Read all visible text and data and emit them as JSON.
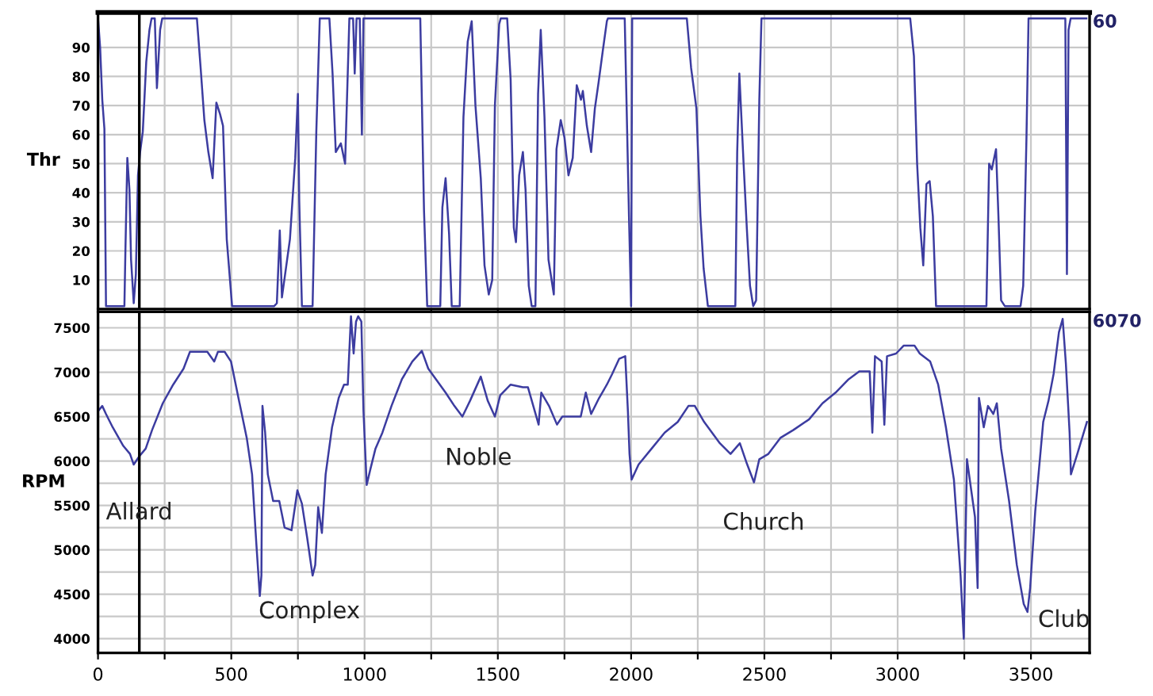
{
  "chart_data": [
    {
      "type": "line",
      "ylabel": "Thr",
      "tick_labels": "y",
      "grid": true,
      "marker": "none",
      "line_style": "solid",
      "xlim": [
        0,
        3720
      ],
      "xticks": [
        0,
        {
          "value": 250,
          "label": null
        },
        500,
        {
          "value": 750,
          "label": null
        },
        1000,
        {
          "value": 1250,
          "label": null
        },
        1500,
        {
          "value": 1750,
          "label": null
        },
        2000,
        {
          "value": 2250,
          "label": null
        },
        2500,
        {
          "value": 2750,
          "label": null
        },
        3000,
        {
          "value": 3250,
          "label": null
        },
        3500
      ],
      "ylim": [
        0,
        102
      ],
      "yticks": [
        10,
        20,
        30,
        40,
        50,
        60,
        70,
        80,
        90
      ],
      "ref_lines": [
        {
          "axis": "x",
          "value": 155,
          "color": "#000000"
        }
      ],
      "annotations": [
        "60"
      ],
      "series": [
        {
          "color": "#3c3ca0",
          "x": [
            0,
            8,
            16,
            24,
            30,
            99,
            103,
            110,
            118,
            124,
            134,
            142,
            150,
            158,
            168,
            181,
            193,
            201,
            213,
            221,
            233,
            241,
            371,
            385,
            399,
            414,
            430,
            444,
            458,
            469,
            483,
            503,
            661,
            671,
            682,
            690,
            702,
            720,
            740,
            750,
            755,
            765,
            805,
            819,
            832,
            868,
            880,
            892,
            911,
            927,
            943,
            957,
            963,
            970,
            982,
            990,
            996,
            1209,
            1223,
            1235,
            1284,
            1292,
            1304,
            1317,
            1327,
            1357,
            1371,
            1387,
            1402,
            1416,
            1436,
            1450,
            1466,
            1479,
            1489,
            1505,
            1511,
            1535,
            1548,
            1560,
            1568,
            1580,
            1594,
            1604,
            1616,
            1627,
            1641,
            1651,
            1661,
            1675,
            1690,
            1710,
            1720,
            1736,
            1750,
            1765,
            1781,
            1796,
            1812,
            1819,
            1834,
            1850,
            1864,
            1878,
            1894,
            1909,
            1913,
            1976,
            1992,
            2000,
            2004,
            2209,
            2225,
            2245,
            2260,
            2272,
            2288,
            2391,
            2398,
            2406,
            2422,
            2434,
            2446,
            2458,
            2469,
            2481,
            2489,
            3047,
            3061,
            3073,
            3085,
            3096,
            3108,
            3120,
            3132,
            3144,
            3333,
            3343,
            3353,
            3369,
            3378,
            3388,
            3402,
            3461,
            3471,
            3483,
            3491,
            3629,
            3635,
            3641,
            3649,
            3708
          ],
          "values": [
            100,
            90,
            72,
            62,
            1,
            1,
            21,
            52,
            41,
            17,
            2,
            12,
            46,
            54,
            61,
            85,
            96,
            100,
            100,
            76,
            96,
            100,
            100,
            83,
            65,
            54,
            45,
            71,
            67,
            63,
            24,
            1,
            1,
            2,
            27,
            4,
            12,
            24,
            52,
            74,
            37,
            1,
            1,
            61,
            100,
            100,
            81,
            54,
            57,
            50,
            100,
            100,
            81,
            100,
            100,
            60,
            100,
            100,
            34,
            1,
            1,
            35,
            45,
            26,
            1,
            1,
            66,
            92,
            99,
            70,
            45,
            15,
            5,
            10,
            70,
            98,
            100,
            100,
            79,
            28,
            23,
            46,
            54,
            41,
            8,
            1,
            1,
            74,
            96,
            66,
            17,
            5,
            55,
            65,
            59,
            46,
            52,
            77,
            72,
            75,
            63,
            54,
            69,
            78,
            89,
            99,
            100,
            100,
            32,
            1,
            100,
            100,
            83,
            69,
            32,
            14,
            1,
            1,
            54,
            81,
            50,
            28,
            8,
            1,
            3,
            72,
            100,
            100,
            87,
            50,
            28,
            15,
            43,
            44,
            32,
            1,
            1,
            50,
            48,
            55,
            32,
            3,
            1,
            1,
            8,
            58,
            100,
            100,
            12,
            96,
            100,
            100
          ]
        }
      ]
    },
    {
      "type": "line",
      "ylabel": "RPM",
      "grid": true,
      "marker": "none",
      "line_style": "solid",
      "xlim": [
        0,
        3720
      ],
      "xticks": [
        0,
        {
          "value": 250,
          "label": null
        },
        500,
        {
          "value": 750,
          "label": null
        },
        1000,
        {
          "value": 1250,
          "label": null
        },
        1500,
        {
          "value": 1750,
          "label": null
        },
        2000,
        {
          "value": 2250,
          "label": null
        },
        2500,
        {
          "value": 2750,
          "label": null
        },
        3000,
        {
          "value": 3250,
          "label": null
        },
        3500
      ],
      "ylim": [
        3840,
        7680
      ],
      "yticks": [
        4000,
        {
          "value": 4250,
          "label": null
        },
        4500,
        {
          "value": 4750,
          "label": null
        },
        5000,
        {
          "value": 5250,
          "label": null
        },
        5500,
        {
          "value": 5750,
          "label": null
        },
        6000,
        {
          "value": 6250,
          "label": null
        },
        6500,
        {
          "value": 6750,
          "label": null
        },
        7000,
        {
          "value": 7250,
          "label": null
        },
        7500
      ],
      "ref_lines": [
        {
          "axis": "x",
          "value": 155,
          "color": "#000000"
        }
      ],
      "annotations": [
        "6070",
        "Allard",
        "Complex",
        "Noble",
        "Church",
        "Club"
      ],
      "series": [
        {
          "color": "#3c3ca0",
          "x": [
            0,
            16,
            30,
            55,
            95,
            120,
            134,
            154,
            179,
            203,
            243,
            282,
            321,
            345,
            385,
            410,
            436,
            450,
            475,
            499,
            529,
            558,
            578,
            594,
            607,
            613,
            617,
            627,
            637,
            657,
            680,
            700,
            726,
            748,
            765,
            785,
            805,
            815,
            826,
            840,
            854,
            878,
            903,
            923,
            937,
            949,
            959,
            968,
            976,
            988,
            996,
            1008,
            1022,
            1041,
            1067,
            1101,
            1140,
            1179,
            1215,
            1239,
            1268,
            1304,
            1337,
            1367,
            1396,
            1436,
            1462,
            1489,
            1509,
            1548,
            1594,
            1613,
            1633,
            1653,
            1663,
            1692,
            1722,
            1742,
            1771,
            1811,
            1830,
            1850,
            1880,
            1909,
            1929,
            1955,
            1978,
            1988,
            1994,
            2002,
            2028,
            2077,
            2126,
            2175,
            2215,
            2239,
            2274,
            2333,
            2373,
            2408,
            2432,
            2461,
            2481,
            2515,
            2560,
            2609,
            2668,
            2718,
            2767,
            2816,
            2856,
            2895,
            2905,
            2915,
            2940,
            2950,
            2960,
            2994,
            3023,
            3063,
            3083,
            3122,
            3152,
            3181,
            3211,
            3236,
            3248,
            3260,
            3276,
            3290,
            3300,
            3305,
            3323,
            3339,
            3359,
            3372,
            3388,
            3418,
            3447,
            3473,
            3487,
            3497,
            3516,
            3546,
            3566,
            3585,
            3605,
            3619,
            3631,
            3645,
            3650,
            3674,
            3710
          ],
          "values": [
            6560,
            6620,
            6530,
            6380,
            6170,
            6080,
            5960,
            6050,
            6140,
            6350,
            6650,
            6860,
            7040,
            7230,
            7230,
            7230,
            7120,
            7230,
            7230,
            7120,
            6680,
            6260,
            5850,
            5070,
            4480,
            4710,
            6620,
            6320,
            5850,
            5550,
            5550,
            5250,
            5220,
            5670,
            5520,
            5130,
            4710,
            4830,
            5480,
            5190,
            5850,
            6380,
            6710,
            6860,
            6860,
            7630,
            7210,
            7570,
            7630,
            7570,
            6560,
            5730,
            5910,
            6140,
            6320,
            6620,
            6920,
            7120,
            7240,
            7040,
            6920,
            6770,
            6620,
            6500,
            6680,
            6950,
            6680,
            6500,
            6740,
            6860,
            6830,
            6830,
            6620,
            6410,
            6770,
            6620,
            6410,
            6500,
            6500,
            6500,
            6770,
            6530,
            6710,
            6860,
            6980,
            7150,
            7180,
            6560,
            6080,
            5790,
            5960,
            6140,
            6320,
            6440,
            6620,
            6620,
            6440,
            6200,
            6080,
            6200,
            5990,
            5760,
            6020,
            6080,
            6260,
            6350,
            6470,
            6650,
            6770,
            6920,
            7010,
            7010,
            6320,
            7180,
            7120,
            6410,
            7180,
            7210,
            7300,
            7300,
            7210,
            7120,
            6860,
            6380,
            5790,
            4710,
            4000,
            6020,
            5670,
            5370,
            4570,
            6710,
            6380,
            6620,
            6530,
            6650,
            6140,
            5550,
            4830,
            4390,
            4300,
            4570,
            5430,
            6440,
            6680,
            6980,
            7450,
            7600,
            7100,
            6320,
            5850,
            6080,
            6440
          ]
        }
      ]
    }
  ]
}
